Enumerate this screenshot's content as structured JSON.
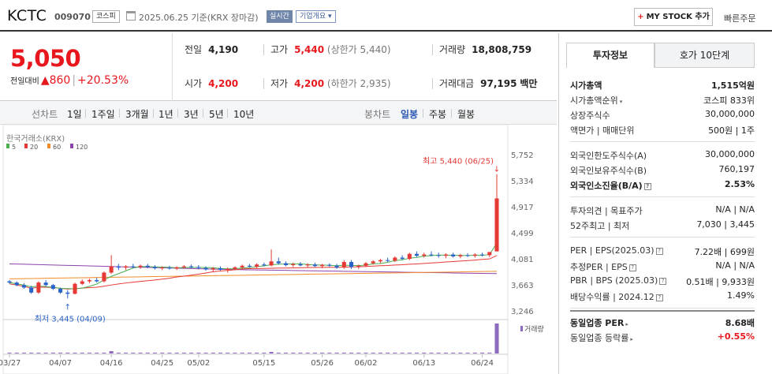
{
  "header": {
    "name": "KCTC",
    "code": "009070",
    "market": "코스피",
    "base_date": "2025.06.25 기준(KRX 장마감)",
    "realtime": "실시간",
    "company_btn": "기업개요 ▾",
    "mystock_plus": "+",
    "mystock": "MY STOCK 추가",
    "quick_order": "빠른주문"
  },
  "price": {
    "current": "5,050",
    "change_label": "전일대비",
    "change_arrow": "▲",
    "change": "860",
    "change_sep": "|",
    "change_pct": "+20.53%",
    "prev_label": "전일",
    "prev": "4,190",
    "high_label": "고가",
    "high": "5,440",
    "high_sub": "(상한가 5,440)",
    "volume_label": "거래량",
    "volume": "18,808,759",
    "open_label": "시가",
    "open": "4,200",
    "low_label": "저가",
    "low": "4,200",
    "low_sub": "(하한가 2,935)",
    "amount_label": "거래대금",
    "amount": "97,195",
    "amount_unit": "백만"
  },
  "period": {
    "line_label": "선차트",
    "items": [
      "1일",
      "1주일",
      "3개월",
      "1년",
      "3년",
      "5년",
      "10년"
    ],
    "candle_label": "봉차트",
    "candle_items": [
      "일봉",
      "주봉",
      "월봉"
    ],
    "candle_active": "일봉"
  },
  "chart": {
    "source": "한국거래소(KRX)",
    "ma_legend": [
      {
        "label": "5",
        "color": "#4caf50"
      },
      {
        "label": "20",
        "color": "#e53935"
      },
      {
        "label": "60",
        "color": "#f28c28"
      },
      {
        "label": "120",
        "color": "#8e44ad"
      }
    ],
    "high_annotation": "최고 5,440 (06/25)",
    "low_annotation": "최저 3,445 (04/09)",
    "volume_label": "거래량",
    "up_color": "#e53935",
    "down_color": "#2962c9"
  },
  "chart_data": {
    "type": "candlestick",
    "y_ticks": [
      "5,752",
      "5,334",
      "4,917",
      "4,499",
      "4,081",
      "3,663",
      "3,246"
    ],
    "ylim": [
      3246,
      5752
    ],
    "x_ticks": [
      "03/27",
      "04/07",
      "04/16",
      "04/25",
      "05/02",
      "05/15",
      "05/26",
      "06/02",
      "06/13",
      "06/24"
    ],
    "candles": [
      [
        3720,
        3740,
        3680,
        3700
      ],
      [
        3700,
        3720,
        3640,
        3660
      ],
      [
        3660,
        3690,
        3600,
        3620
      ],
      [
        3620,
        3650,
        3520,
        3540
      ],
      [
        3540,
        3720,
        3520,
        3700
      ],
      [
        3700,
        3740,
        3640,
        3660
      ],
      [
        3660,
        3680,
        3580,
        3600
      ],
      [
        3600,
        3620,
        3520,
        3540
      ],
      [
        3540,
        3580,
        3445,
        3520
      ],
      [
        3520,
        3700,
        3510,
        3680
      ],
      [
        3680,
        3750,
        3660,
        3720
      ],
      [
        3720,
        3760,
        3690,
        3740
      ],
      [
        3740,
        3780,
        3700,
        3720
      ],
      [
        3720,
        3880,
        3700,
        3860
      ],
      [
        3860,
        4140,
        3840,
        3960
      ],
      [
        3960,
        4000,
        3900,
        3940
      ],
      [
        3940,
        3980,
        3900,
        3960
      ],
      [
        3960,
        4000,
        3930,
        3950
      ],
      [
        3950,
        3990,
        3920,
        3970
      ],
      [
        3970,
        4000,
        3930,
        3950
      ],
      [
        3950,
        3980,
        3910,
        3930
      ],
      [
        3930,
        3960,
        3900,
        3940
      ],
      [
        3940,
        3970,
        3910,
        3925
      ],
      [
        3925,
        3960,
        3900,
        3945
      ],
      [
        3945,
        3980,
        3920,
        3960
      ],
      [
        3960,
        3990,
        3930,
        3950
      ],
      [
        3950,
        3980,
        3910,
        3935
      ],
      [
        3935,
        3960,
        3890,
        3910
      ],
      [
        3910,
        3950,
        3870,
        3930
      ],
      [
        3930,
        3960,
        3890,
        3905
      ],
      [
        3905,
        3940,
        3860,
        3920
      ],
      [
        3920,
        3960,
        3900,
        3945
      ],
      [
        3945,
        3990,
        3920,
        3970
      ],
      [
        3970,
        4000,
        3940,
        3955
      ],
      [
        3955,
        4010,
        3930,
        3990
      ],
      [
        3990,
        4020,
        3960,
        3975
      ],
      [
        3975,
        4230,
        3960,
        4040
      ],
      [
        4040,
        4100,
        3990,
        4010
      ],
      [
        4010,
        4040,
        3960,
        3980
      ],
      [
        3980,
        4020,
        3950,
        3995
      ],
      [
        3995,
        4030,
        3960,
        3975
      ],
      [
        3975,
        4010,
        3940,
        3990
      ],
      [
        3990,
        4020,
        3950,
        3965
      ],
      [
        3965,
        4000,
        3930,
        3985
      ],
      [
        3985,
        4010,
        3950,
        3970
      ],
      [
        3970,
        4000,
        3920,
        3940
      ],
      [
        3940,
        4060,
        3920,
        4030
      ],
      [
        4030,
        4060,
        3920,
        3950
      ],
      [
        3950,
        3990,
        3920,
        3970
      ],
      [
        3970,
        4030,
        3950,
        4010
      ],
      [
        4010,
        4060,
        3990,
        4040
      ],
      [
        4040,
        4080,
        4010,
        4060
      ],
      [
        4060,
        4100,
        4030,
        4050
      ],
      [
        4050,
        4120,
        4030,
        4100
      ],
      [
        4100,
        4140,
        4060,
        4080
      ],
      [
        4080,
        4180,
        4060,
        4160
      ],
      [
        4160,
        4200,
        4110,
        4130
      ],
      [
        4130,
        4180,
        4100,
        4150
      ],
      [
        4150,
        4200,
        4120,
        4140
      ],
      [
        4140,
        4180,
        4100,
        4130
      ],
      [
        4130,
        4170,
        4090,
        4150
      ],
      [
        4150,
        4180,
        4100,
        4120
      ],
      [
        4120,
        4160,
        4090,
        4140
      ],
      [
        4140,
        4170,
        4110,
        4130
      ],
      [
        4130,
        4170,
        4100,
        4150
      ],
      [
        4150,
        4180,
        4120,
        4140
      ],
      [
        4140,
        4190,
        4110,
        4190
      ],
      [
        4200,
        5440,
        4200,
        5050
      ]
    ]
  },
  "right": {
    "tab1": "투자정보",
    "tab2": "호가 10단계",
    "rows1": [
      {
        "k": "시가총액",
        "v": "1,515억원",
        "bold": true
      },
      {
        "k": "시가총액순위",
        "arrow": "▾",
        "v": "코스피 833위"
      },
      {
        "k": "상장주식수",
        "v": "30,000,000"
      },
      {
        "k": "액면가 | 매매단위",
        "v": "500원 | 1주"
      }
    ],
    "rows2": [
      {
        "k": "외국인한도주식수(A)",
        "v": "30,000,000"
      },
      {
        "k": "외국인보유주식수(B)",
        "v": "760,197"
      },
      {
        "k": "외국인소진율(B/A)",
        "q": "?",
        "v": "2.53%",
        "bold": true
      }
    ],
    "rows3": [
      {
        "k": "투자의견 | 목표주가",
        "v": "N/A | N/A"
      },
      {
        "k": "52주최고 | 최저",
        "v": "7,030 | 3,445"
      }
    ],
    "rows4": [
      {
        "k": "PER | EPS(2025.03)",
        "q": "?",
        "v": "7.22배 | 699원"
      },
      {
        "k": "추정PER | EPS",
        "q": "?",
        "v": "N/A | N/A"
      },
      {
        "k": "PBR | BPS (2025.03)",
        "q": "?",
        "v": "0.51배 | 9,933원"
      },
      {
        "k": "배당수익률 | 2024.12",
        "q": "?",
        "v": "1.49%"
      }
    ],
    "rows5": [
      {
        "k": "동일업종 PER",
        "arrow": "▸",
        "v": "8.68배",
        "bold": true
      },
      {
        "k": "동일업종 등락률",
        "arrow": "▸",
        "v": "+0.55%",
        "red": true
      }
    ]
  }
}
